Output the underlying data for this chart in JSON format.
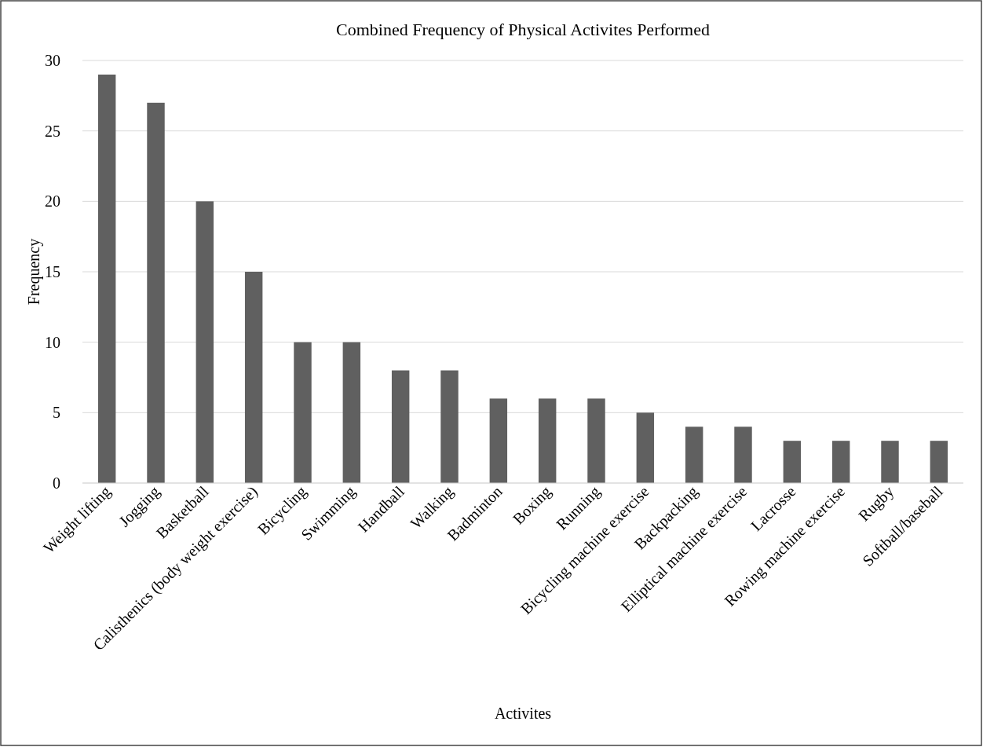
{
  "chart_data": {
    "type": "bar",
    "title": "Combined Frequency of Physical Activites Performed",
    "xlabel": "Activites",
    "ylabel": "Frequency",
    "categories": [
      "Weight lifting",
      "Jogging",
      "Basketball",
      "Calisthenics (body weight exercise)",
      "Bicycling",
      "Swimming",
      "Handball",
      "Walking",
      "Badminton",
      "Boxing",
      "Running",
      "Bicycling machine exercise",
      "Backpacking",
      "Elliptical machine exercise",
      "Lacrosse",
      "Rowing machine exercise",
      "Rugby",
      "Softball/baseball"
    ],
    "values": [
      29,
      27,
      20,
      15,
      10,
      10,
      8,
      8,
      6,
      6,
      6,
      5,
      4,
      4,
      3,
      3,
      3,
      3
    ],
    "color": "#606060",
    "ylim": [
      0,
      30
    ],
    "yticks": [
      0,
      5,
      10,
      15,
      20,
      25,
      30
    ],
    "grid": "y"
  }
}
